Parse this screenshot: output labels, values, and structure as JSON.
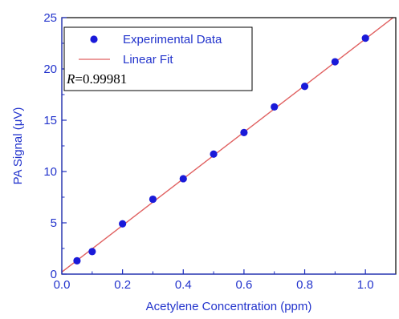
{
  "colors": {
    "axis": "#1a2bbf",
    "text": "#2233cc",
    "points": "#1a1ad9",
    "fit_line": "#e06060",
    "frame": "#000000"
  },
  "chart_data": {
    "type": "scatter",
    "title": "",
    "xlabel": "Acetylene Concentration (ppm)",
    "ylabel": "PA Signal (μV)",
    "xlim": [
      0.0,
      1.1
    ],
    "ylim": [
      0,
      25
    ],
    "x_ticks": [
      0.0,
      0.2,
      0.4,
      0.6,
      0.8,
      1.0
    ],
    "x_tick_labels": [
      "0.0",
      "0.2",
      "0.4",
      "0.6",
      "0.8",
      "1.0"
    ],
    "y_ticks": [
      0,
      5,
      10,
      15,
      20,
      25
    ],
    "y_tick_labels": [
      "0",
      "5",
      "10",
      "15",
      "20",
      "25"
    ],
    "grid": false,
    "legend_position": "top-left",
    "series": [
      {
        "name": "Experimental Data",
        "kind": "scatter",
        "x": [
          0.05,
          0.1,
          0.2,
          0.3,
          0.4,
          0.5,
          0.6,
          0.7,
          0.8,
          0.9,
          1.0
        ],
        "y": [
          1.3,
          2.2,
          4.9,
          7.3,
          9.3,
          11.7,
          13.8,
          16.3,
          18.3,
          20.7,
          23.0
        ]
      },
      {
        "name": "Linear Fit",
        "kind": "line",
        "x": [
          0.0,
          1.1
        ],
        "y": [
          0.2,
          25.2
        ]
      }
    ],
    "legend": {
      "entries": [
        "Experimental Data",
        "Linear Fit"
      ],
      "r_label": "R",
      "r_value": "=0.99981"
    }
  }
}
